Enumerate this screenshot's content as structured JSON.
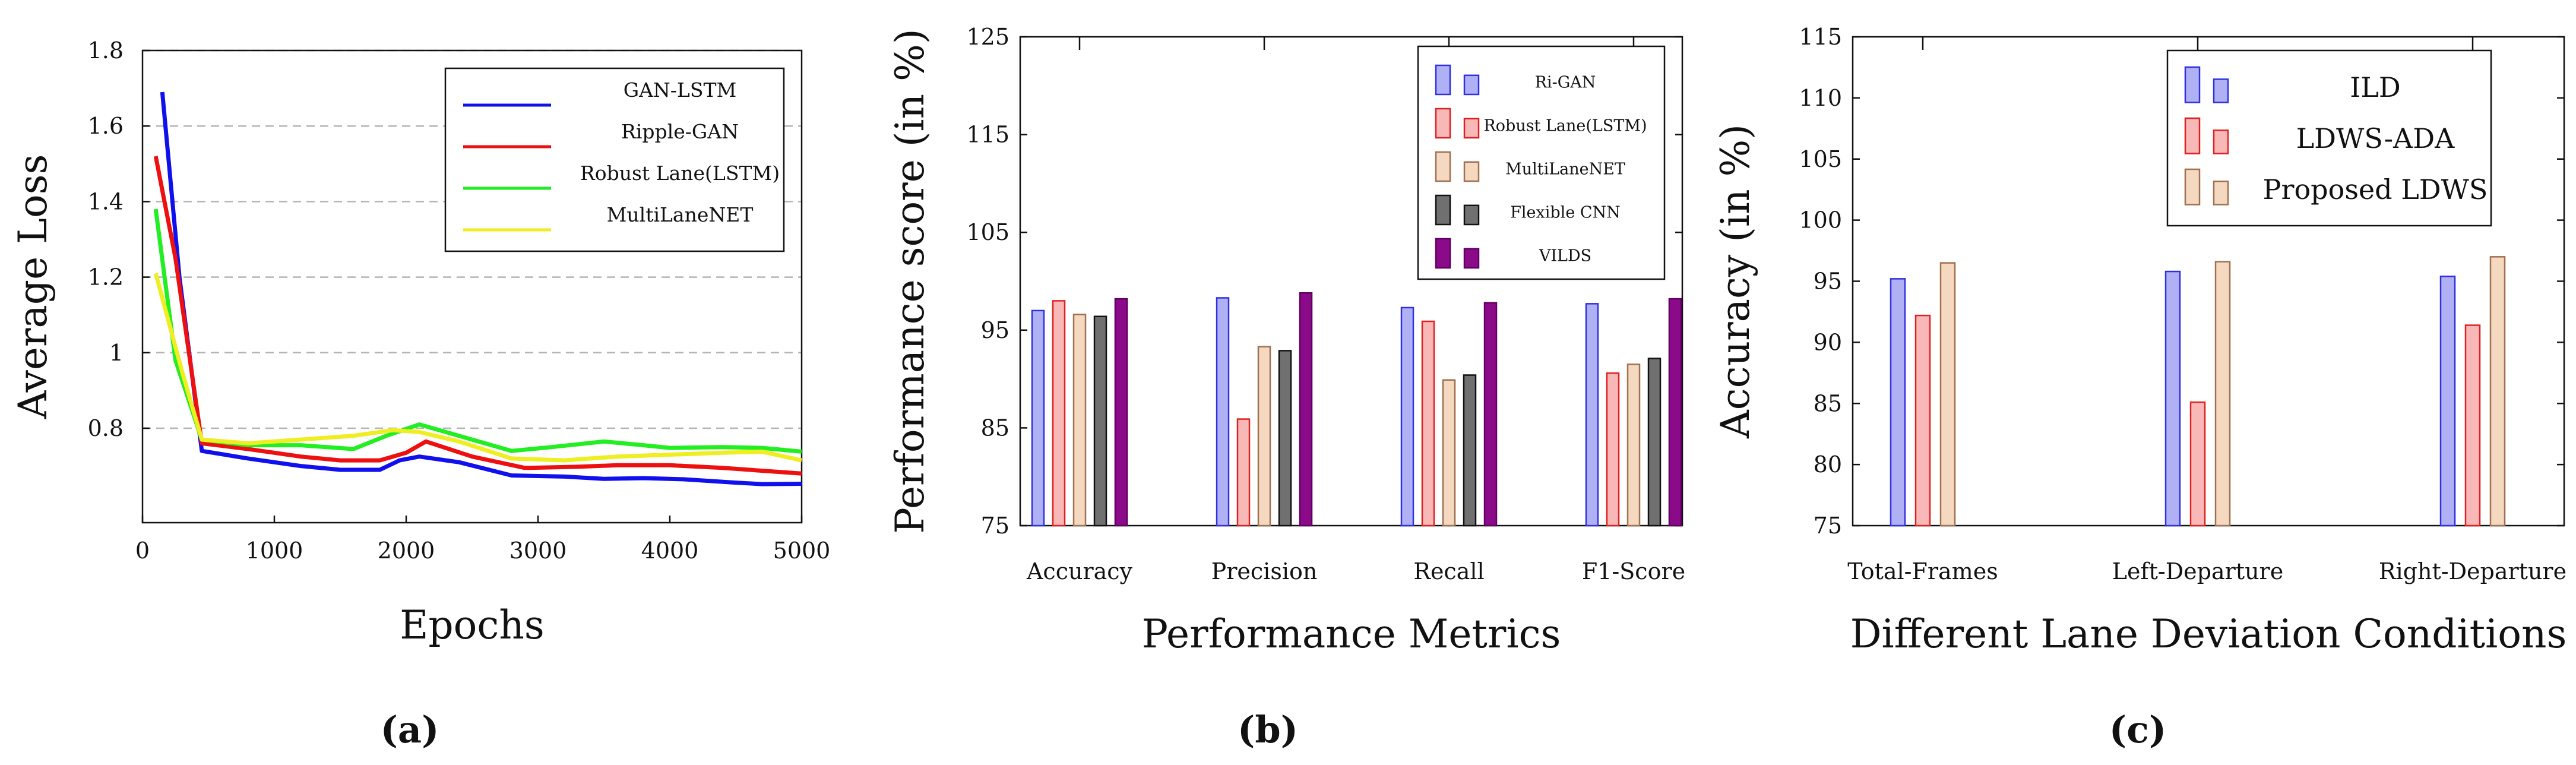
{
  "chart_data": [
    {
      "id": "a",
      "type": "line",
      "subcaption": "(a)",
      "xlabel": "Epochs",
      "ylabel": "Average Loss",
      "xlim": [
        0,
        5000
      ],
      "ylim": [
        0.55,
        1.8
      ],
      "grid": "horizontal-dashed",
      "legend_position": "top-right",
      "xticks": [
        0,
        1000,
        2000,
        3000,
        4000,
        5000
      ],
      "yticks": [
        0.8,
        1,
        1.2,
        1.4,
        1.6,
        1.8
      ],
      "xtick_labels": [
        "0",
        "1000",
        "2000",
        "3000",
        "4000",
        "5000"
      ],
      "ytick_labels": [
        "0.8",
        "1",
        "1.2",
        "1.4",
        "1.6",
        "1.8"
      ],
      "series": [
        {
          "name": "GAN-LSTM",
          "color": "#1010ee",
          "x": [
            150,
            280,
            450,
            800,
            1200,
            1500,
            1800,
            1950,
            2100,
            2400,
            2800,
            3200,
            3500,
            3800,
            4100,
            4500,
            4700,
            5000
          ],
          "y": [
            1.69,
            1.2,
            0.74,
            0.72,
            0.7,
            0.69,
            0.69,
            0.715,
            0.725,
            0.71,
            0.675,
            0.672,
            0.666,
            0.668,
            0.665,
            0.656,
            0.652,
            0.653
          ]
        },
        {
          "name": "Ripple-GAN",
          "color": "#ee1010",
          "x": [
            100,
            250,
            450,
            800,
            1200,
            1500,
            1800,
            2000,
            2150,
            2500,
            2900,
            3300,
            3600,
            4000,
            4400,
            4800,
            5000
          ],
          "y": [
            1.52,
            1.25,
            0.76,
            0.745,
            0.725,
            0.715,
            0.715,
            0.735,
            0.765,
            0.725,
            0.695,
            0.698,
            0.702,
            0.702,
            0.695,
            0.685,
            0.68
          ]
        },
        {
          "name": "Robust Lane(LSTM)",
          "color": "#22ee22",
          "x": [
            100,
            250,
            450,
            800,
            1200,
            1600,
            1850,
            2100,
            2400,
            2800,
            3100,
            3500,
            3800,
            4000,
            4400,
            4700,
            5000
          ],
          "y": [
            1.38,
            0.98,
            0.77,
            0.755,
            0.755,
            0.745,
            0.78,
            0.81,
            0.78,
            0.74,
            0.75,
            0.765,
            0.755,
            0.748,
            0.75,
            0.748,
            0.738
          ]
        },
        {
          "name": "MultiLaneNET",
          "color": "#eeee22",
          "x": [
            100,
            300,
            450,
            800,
            1200,
            1600,
            1900,
            2100,
            2400,
            2800,
            3200,
            3600,
            4000,
            4400,
            4700,
            5000
          ],
          "y": [
            1.21,
            0.95,
            0.77,
            0.76,
            0.77,
            0.78,
            0.795,
            0.79,
            0.765,
            0.72,
            0.715,
            0.725,
            0.73,
            0.735,
            0.738,
            0.715
          ]
        }
      ]
    },
    {
      "id": "b",
      "type": "bar",
      "subcaption": "(b)",
      "xlabel": "Performance Metrics",
      "ylabel": "Performance score (in %)",
      "ylim": [
        75,
        125
      ],
      "yticks": [
        75,
        85,
        95,
        105,
        115,
        125
      ],
      "ytick_labels": [
        "75",
        "85",
        "95",
        "105",
        "115",
        "125"
      ],
      "legend_position": "top-right",
      "categories": [
        "Accuracy",
        "Precision",
        "Recall",
        "F1-Score"
      ],
      "series": [
        {
          "name": "Ri-GAN",
          "color": "#b0b0f4",
          "edge": "#3030e0",
          "values": [
            97.0,
            98.3,
            97.3,
            97.7
          ]
        },
        {
          "name": "Robust Lane(LSTM)",
          "color": "#f8b8b8",
          "edge": "#e02020",
          "values": [
            98.0,
            85.9,
            95.9,
            90.6
          ]
        },
        {
          "name": "MultiLaneNET",
          "color": "#f4d8c0",
          "edge": "#a07050",
          "values": [
            96.6,
            93.3,
            89.9,
            91.5
          ]
        },
        {
          "name": "Flexible CNN",
          "color": "#707070",
          "edge": "#111111",
          "values": [
            96.4,
            92.9,
            90.4,
            92.1
          ]
        },
        {
          "name": "VILDS",
          "color": "#8a0a8a",
          "edge": "#600060",
          "values": [
            98.2,
            98.8,
            97.8,
            98.2
          ]
        }
      ]
    },
    {
      "id": "c",
      "type": "bar",
      "subcaption": "(c)",
      "xlabel": "Different Lane Deviation Conditions",
      "ylabel": "Accuracy (in %)",
      "ylim": [
        75,
        115
      ],
      "yticks": [
        75,
        80,
        85,
        90,
        95,
        100,
        105,
        110,
        115
      ],
      "ytick_labels": [
        "75",
        "80",
        "85",
        "90",
        "95",
        "100",
        "105",
        "110",
        "115"
      ],
      "legend_position": "top-right",
      "categories": [
        "Total-Frames",
        "Left-Departure",
        "Right-Departure"
      ],
      "series": [
        {
          "name": "ILD",
          "color": "#b0b0f4",
          "edge": "#3030e0",
          "values": [
            95.2,
            95.8,
            95.4
          ]
        },
        {
          "name": "LDWS-ADA",
          "color": "#f8b8b8",
          "edge": "#e02020",
          "values": [
            92.2,
            85.1,
            91.4
          ]
        },
        {
          "name": "Proposed LDWS",
          "color": "#f4d8c0",
          "edge": "#a07050",
          "values": [
            96.5,
            96.6,
            97.0
          ]
        }
      ]
    }
  ]
}
